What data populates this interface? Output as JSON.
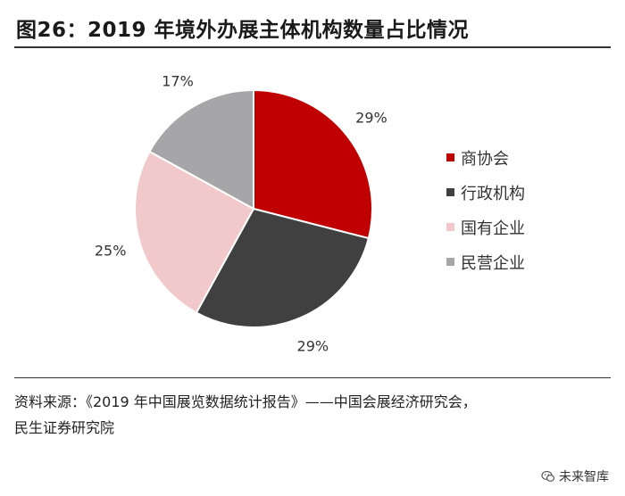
{
  "title": "图26：2019 年境外办展主体机构数量占比情况",
  "chart_data": {
    "type": "pie",
    "title": "",
    "start_angle_deg": 0,
    "direction": "clockwise",
    "slices": [
      {
        "label": "商协会",
        "value": 29,
        "display": "29%",
        "color": "#c00000"
      },
      {
        "label": "行政机构",
        "value": 29,
        "display": "29%",
        "color": "#404040"
      },
      {
        "label": "国有企业",
        "value": 25,
        "display": "25%",
        "color": "#f2c9cb"
      },
      {
        "label": "民营企业",
        "value": 17,
        "display": "17%",
        "color": "#a6a6a8"
      }
    ],
    "legend_position": "right"
  },
  "source": {
    "line1": "资料来源：《2019 年中国展览数据统计报告》——中国会展经济研究会，",
    "line2": "民生证券研究院"
  },
  "watermark": {
    "text": "未来智库",
    "icon": "wechat-icon"
  }
}
